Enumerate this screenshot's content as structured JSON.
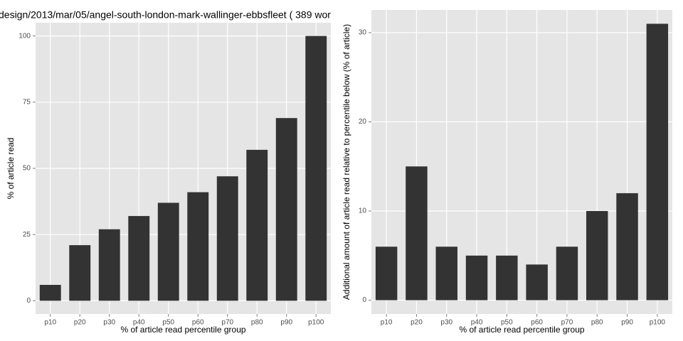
{
  "chart_data": [
    {
      "type": "bar",
      "title": "design/2013/mar/05/angel-south-london-mark-wallinger-ebbsfleet ( 389 wor",
      "x_label": "% of article read percentile group",
      "y_label": "% of article read",
      "categories": [
        "p10",
        "p20",
        "p30",
        "p40",
        "p50",
        "p60",
        "p70",
        "p80",
        "p90",
        "p100"
      ],
      "values": [
        6,
        21,
        27,
        32,
        37,
        41,
        47,
        57,
        69,
        100
      ],
      "color": "#333333",
      "ylim": [
        -5,
        105
      ],
      "yticks": [
        0,
        25,
        50,
        75,
        100
      ],
      "grid": true
    },
    {
      "type": "bar",
      "x_label": "% of article read percentile group",
      "y_label": "Additional amount of article read relative to percentile below (% of article)",
      "categories": [
        "p10",
        "p20",
        "p30",
        "p40",
        "p50",
        "p60",
        "p70",
        "p80",
        "p90",
        "p100"
      ],
      "values": [
        6,
        15,
        6,
        5,
        5,
        4,
        6,
        10,
        12,
        31
      ],
      "color": "#333333",
      "ylim": [
        -1.55,
        32.55
      ],
      "yticks": [
        0,
        10,
        20,
        30
      ],
      "grid": true
    }
  ]
}
